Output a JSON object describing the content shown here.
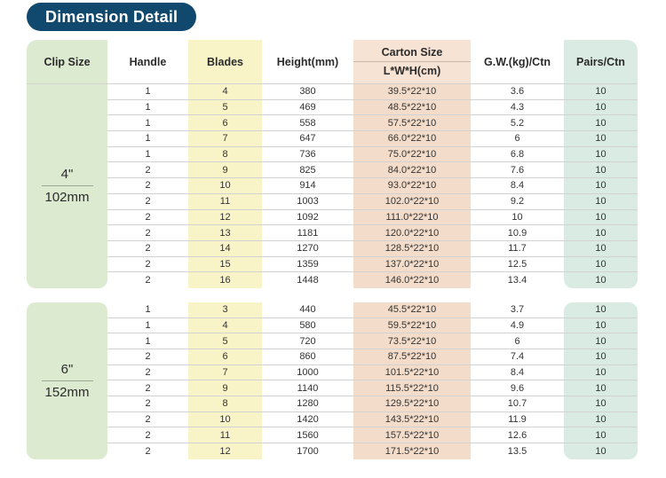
{
  "title": "Dimension Detail",
  "colors": {
    "title_bg": "#10486e",
    "clip_col": "#dcead0",
    "blades_col": "#f8f4c8",
    "carton_header": "#f7e3d4",
    "carton_col": "#f3dcc9",
    "pairs_col": "#d9ebe2",
    "sep": "#d2d2d2"
  },
  "table": {
    "headers": {
      "clip_size": "Clip Size",
      "handle": "Handle",
      "blades": "Blades",
      "height": "Height(mm)",
      "carton_size": "Carton Size",
      "carton_sub": "L*W*H(cm)",
      "gw": "G.W.(kg)/Ctn",
      "pairs": "Pairs/Ctn"
    },
    "sections": [
      {
        "clip_size_top": "4\"",
        "clip_size_bottom": "102mm",
        "rows": [
          {
            "handle": "1",
            "blades": "4",
            "height": "380",
            "carton": "39.5*22*10",
            "gw": "3.6",
            "pairs": "10"
          },
          {
            "handle": "1",
            "blades": "5",
            "height": "469",
            "carton": "48.5*22*10",
            "gw": "4.3",
            "pairs": "10"
          },
          {
            "handle": "1",
            "blades": "6",
            "height": "558",
            "carton": "57.5*22*10",
            "gw": "5.2",
            "pairs": "10"
          },
          {
            "handle": "1",
            "blades": "7",
            "height": "647",
            "carton": "66.0*22*10",
            "gw": "6",
            "pairs": "10"
          },
          {
            "handle": "1",
            "blades": "8",
            "height": "736",
            "carton": "75.0*22*10",
            "gw": "6.8",
            "pairs": "10"
          },
          {
            "handle": "2",
            "blades": "9",
            "height": "825",
            "carton": "84.0*22*10",
            "gw": "7.6",
            "pairs": "10"
          },
          {
            "handle": "2",
            "blades": "10",
            "height": "914",
            "carton": "93.0*22*10",
            "gw": "8.4",
            "pairs": "10"
          },
          {
            "handle": "2",
            "blades": "11",
            "height": "1003",
            "carton": "102.0*22*10",
            "gw": "9.2",
            "pairs": "10"
          },
          {
            "handle": "2",
            "blades": "12",
            "height": "1092",
            "carton": "111.0*22*10",
            "gw": "10",
            "pairs": "10"
          },
          {
            "handle": "2",
            "blades": "13",
            "height": "1181",
            "carton": "120.0*22*10",
            "gw": "10.9",
            "pairs": "10"
          },
          {
            "handle": "2",
            "blades": "14",
            "height": "1270",
            "carton": "128.5*22*10",
            "gw": "11.7",
            "pairs": "10"
          },
          {
            "handle": "2",
            "blades": "15",
            "height": "1359",
            "carton": "137.0*22*10",
            "gw": "12.5",
            "pairs": "10"
          },
          {
            "handle": "2",
            "blades": "16",
            "height": "1448",
            "carton": "146.0*22*10",
            "gw": "13.4",
            "pairs": "10"
          }
        ]
      },
      {
        "clip_size_top": "6\"",
        "clip_size_bottom": "152mm",
        "rows": [
          {
            "handle": "1",
            "blades": "3",
            "height": "440",
            "carton": "45.5*22*10",
            "gw": "3.7",
            "pairs": "10"
          },
          {
            "handle": "1",
            "blades": "4",
            "height": "580",
            "carton": "59.5*22*10",
            "gw": "4.9",
            "pairs": "10"
          },
          {
            "handle": "1",
            "blades": "5",
            "height": "720",
            "carton": "73.5*22*10",
            "gw": "6",
            "pairs": "10"
          },
          {
            "handle": "2",
            "blades": "6",
            "height": "860",
            "carton": "87.5*22*10",
            "gw": "7.4",
            "pairs": "10"
          },
          {
            "handle": "2",
            "blades": "7",
            "height": "1000",
            "carton": "101.5*22*10",
            "gw": "8.4",
            "pairs": "10"
          },
          {
            "handle": "2",
            "blades": "9",
            "height": "1140",
            "carton": "115.5*22*10",
            "gw": "9.6",
            "pairs": "10"
          },
          {
            "handle": "2",
            "blades": "8",
            "height": "1280",
            "carton": "129.5*22*10",
            "gw": "10.7",
            "pairs": "10"
          },
          {
            "handle": "2",
            "blades": "10",
            "height": "1420",
            "carton": "143.5*22*10",
            "gw": "11.9",
            "pairs": "10"
          },
          {
            "handle": "2",
            "blades": "11",
            "height": "1560",
            "carton": "157.5*22*10",
            "gw": "12.6",
            "pairs": "10"
          },
          {
            "handle": "2",
            "blades": "12",
            "height": "1700",
            "carton": "171.5*22*10",
            "gw": "13.5",
            "pairs": "10"
          }
        ]
      }
    ]
  }
}
